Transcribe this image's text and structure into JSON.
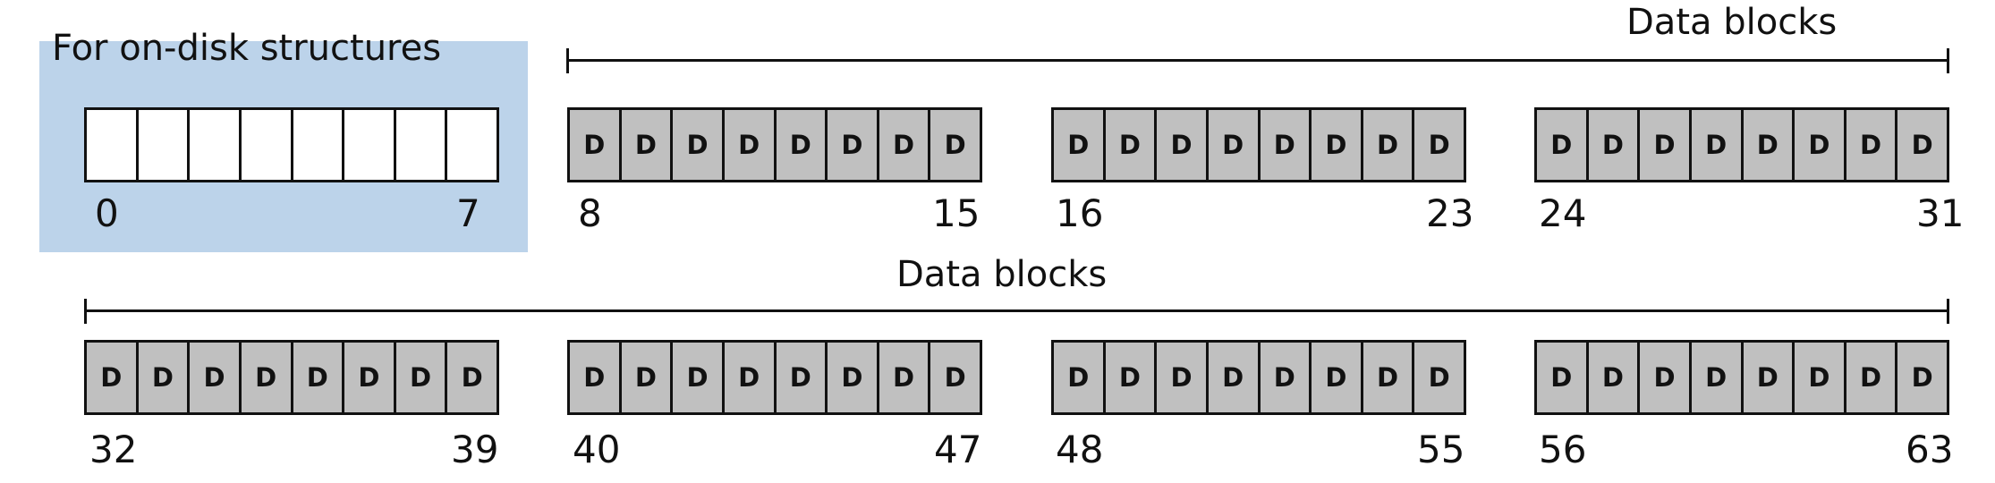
{
  "region": {
    "title": "For on-disk structures"
  },
  "brackets": [
    {
      "label": "Data blocks"
    },
    {
      "label": "Data blocks"
    }
  ],
  "groups": [
    {
      "start": "0",
      "end": "7",
      "cells": [
        "",
        "",
        "",
        "",
        "",
        "",
        "",
        ""
      ]
    },
    {
      "start": "8",
      "end": "15",
      "cells": [
        "D",
        "D",
        "D",
        "D",
        "D",
        "D",
        "D",
        "D"
      ]
    },
    {
      "start": "16",
      "end": "23",
      "cells": [
        "D",
        "D",
        "D",
        "D",
        "D",
        "D",
        "D",
        "D"
      ]
    },
    {
      "start": "24",
      "end": "31",
      "cells": [
        "D",
        "D",
        "D",
        "D",
        "D",
        "D",
        "D",
        "D"
      ]
    },
    {
      "start": "32",
      "end": "39",
      "cells": [
        "D",
        "D",
        "D",
        "D",
        "D",
        "D",
        "D",
        "D"
      ]
    },
    {
      "start": "40",
      "end": "47",
      "cells": [
        "D",
        "D",
        "D",
        "D",
        "D",
        "D",
        "D",
        "D"
      ]
    },
    {
      "start": "48",
      "end": "55",
      "cells": [
        "D",
        "D",
        "D",
        "D",
        "D",
        "D",
        "D",
        "D"
      ]
    },
    {
      "start": "56",
      "end": "63",
      "cells": [
        "D",
        "D",
        "D",
        "D",
        "D",
        "D",
        "D",
        "D"
      ]
    }
  ]
}
